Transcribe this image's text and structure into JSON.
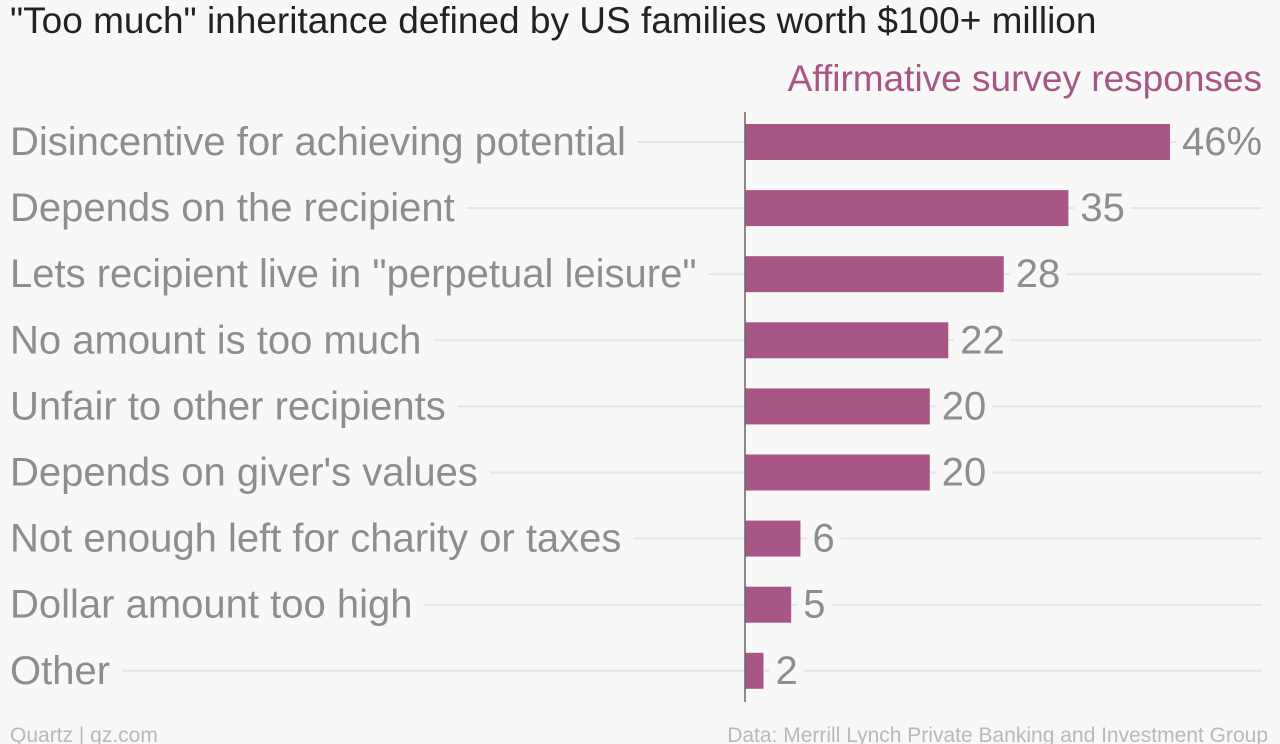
{
  "chart_data": {
    "type": "bar",
    "orientation": "horizontal",
    "title": "\"Too much\" inheritance defined by US families worth $100+ million",
    "series_label": "Affirmative survey responses",
    "categories": [
      "Disincentive for achieving potential",
      "Depends on the recipient",
      "Lets recipient live in \"perpetual leisure\"",
      "No amount is too much",
      "Unfair to other recipients",
      "Depends on giver's values",
      "Not enough left for charity or taxes",
      "Dollar amount too high",
      "Other"
    ],
    "values": [
      46,
      35,
      28,
      22,
      20,
      20,
      6,
      5,
      2
    ],
    "value_labels": [
      "46%",
      "35",
      "28",
      "22",
      "20",
      "20",
      "6",
      "5",
      "2"
    ],
    "xlim": [
      0,
      50
    ],
    "unit": "%",
    "grid": true,
    "colors": {
      "bar": "#a85686",
      "series_label": "#a85686",
      "title": "#222222",
      "category_text": "#8e8e8e",
      "value_text": "#8e8e8e",
      "gridline": "#e6e6e6",
      "axis": "#666666",
      "footer_text": "#b9b9b9"
    }
  },
  "footer": {
    "source_left": "Quartz | qz.com",
    "source_right": "Data: Merrill Lynch Private Banking and Investment Group"
  }
}
